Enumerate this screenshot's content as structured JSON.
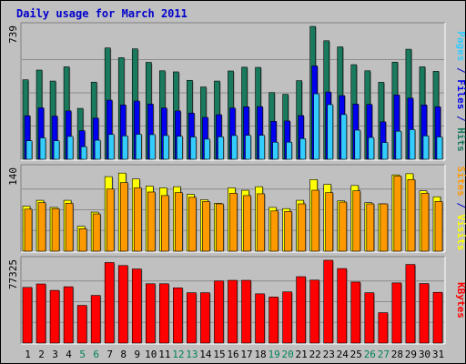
{
  "chart_data": {
    "type": "bar",
    "title": "Daily usage for March 2011",
    "categories": [
      "1",
      "2",
      "3",
      "4",
      "5",
      "6",
      "7",
      "8",
      "9",
      "10",
      "11",
      "12",
      "13",
      "14",
      "15",
      "16",
      "17",
      "18",
      "19",
      "20",
      "21",
      "22",
      "23",
      "24",
      "25",
      "26",
      "27",
      "28",
      "29",
      "30",
      "31"
    ],
    "weekend_days": [
      "5",
      "6",
      "12",
      "13",
      "19",
      "20",
      "26",
      "27"
    ],
    "panels": [
      {
        "name": "requests",
        "ymax": 739,
        "ymax_label": "739",
        "axis_label_parts": [
          "Pages",
          "Files",
          "Hits"
        ],
        "series": [
          {
            "name": "Hits",
            "color": "#1a7a5e",
            "values": [
              442,
              496,
              435,
              514,
              283,
              429,
              619,
              565,
              614,
              539,
              492,
              486,
              439,
              402,
              435,
              491,
              512,
              511,
              371,
              361,
              437,
              739,
              659,
              625,
              526,
              492,
              428,
              540,
              612,
              514,
              489
            ]
          },
          {
            "name": "Files",
            "color": "#0000ee",
            "values": [
              242,
              286,
              240,
              269,
              159,
              229,
              329,
              302,
              324,
              307,
              285,
              269,
              257,
              233,
              248,
              285,
              292,
              293,
              211,
              213,
              243,
              519,
              374,
              354,
              307,
              305,
              208,
              358,
              340,
              302,
              292
            ]
          },
          {
            "name": "Pages",
            "color": "#33ccff",
            "values": [
              103,
              119,
              103,
              127,
              70,
              106,
              138,
              130,
              139,
              137,
              132,
              128,
              124,
              112,
              125,
              132,
              133,
              133,
              95,
              95,
              115,
              364,
              304,
              249,
              162,
              121,
              93,
              156,
              165,
              130,
              124
            ]
          }
        ]
      },
      {
        "name": "visitors",
        "ymax": 140,
        "ymax_label": "140",
        "axis_label_parts": [
          "Sites",
          "Visits"
        ],
        "series": [
          {
            "name": "Visits",
            "color": "#ffff00",
            "values": [
              76,
              86,
              74,
              86,
              42,
              66,
              126,
              132,
              122,
              110,
              107,
              109,
              96,
              87,
              81,
              107,
              103,
              109,
              74,
              72,
              86,
              121,
              113,
              85,
              111,
              82,
              80,
              129,
              131,
              102,
              92
            ]
          },
          {
            "name": "Sites",
            "color": "#ff9900",
            "values": [
              71,
              82,
              72,
              81,
              38,
              63,
              105,
              116,
              107,
              100,
              94,
              99,
              91,
              84,
              80,
              98,
              94,
              97,
              68,
              67,
              80,
              103,
              99,
              83,
              102,
              80,
              80,
              127,
              121,
              98,
              84
            ]
          }
        ]
      },
      {
        "name": "kbytes",
        "ymax": 77325,
        "ymax_label": "77325",
        "axis_label_parts": [
          "KBytes"
        ],
        "series": [
          {
            "name": "KBytes",
            "color": "#ff0000",
            "values": [
              52000,
              55200,
              49200,
              52600,
              35200,
              44500,
              75200,
              72400,
              69200,
              55400,
              55400,
              51600,
              47000,
              47000,
              58000,
              58600,
              58600,
              46000,
              43000,
              47800,
              62000,
              58800,
              77325,
              69600,
              57000,
              47000,
              28400,
              56200,
              73400,
              55600,
              47400
            ]
          }
        ]
      }
    ],
    "legend_colors": {
      "Hits": "#1a7a5e",
      "Files": "#0000ee",
      "Pages": "#33ccff",
      "Visits": "#ffff00",
      "Sites": "#ff9900",
      "KBytes": "#ff0000",
      "separator": "#0000cc"
    },
    "style": {
      "title_color": "#0000cc",
      "plot_bg": "#c0c0c0",
      "outer_bg": "#c0c0c0",
      "weekday_label_color": "#000000",
      "weekend_label_color": "#00805a",
      "grid": true
    }
  }
}
